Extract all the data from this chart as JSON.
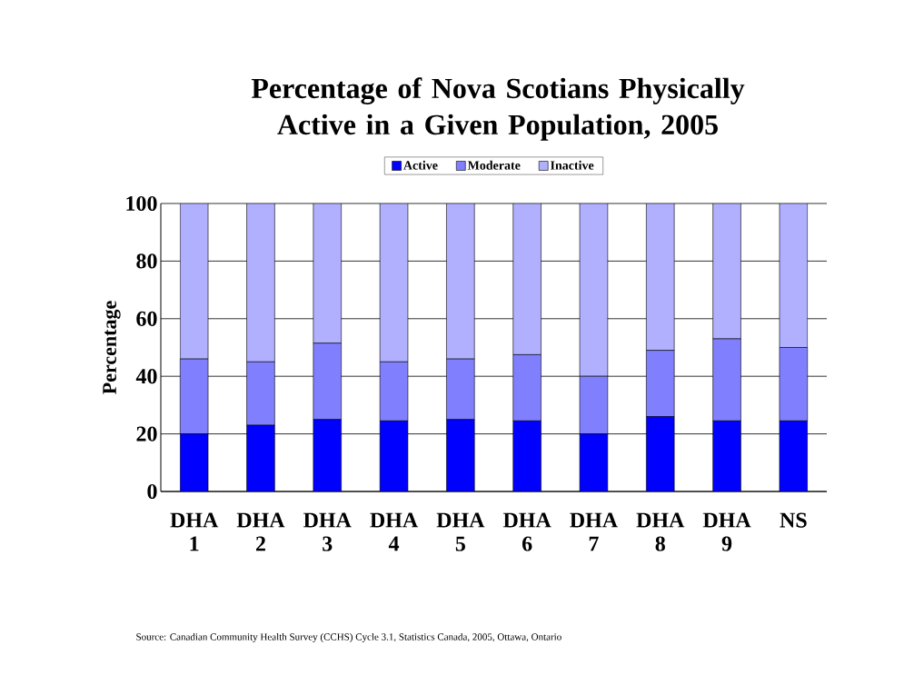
{
  "chart_data": {
    "type": "bar",
    "stacked": true,
    "title": "Percentage of Nova Scotians Physically Active in a Given Population, 2005",
    "ylabel": "Percentage",
    "categories": [
      "DHA 1",
      "DHA 2",
      "DHA 3",
      "DHA 4",
      "DHA 5",
      "DHA 6",
      "DHA 7",
      "DHA 8",
      "DHA 9",
      "NS"
    ],
    "series": [
      {
        "name": "Active",
        "color": "#0000ff",
        "values": [
          20,
          23,
          25,
          24.5,
          25,
          24.5,
          20,
          26,
          24.5,
          24.5
        ]
      },
      {
        "name": "Moderate",
        "color": "#8080ff",
        "values": [
          26,
          22,
          26.5,
          20.5,
          21,
          23,
          20,
          23,
          28.5,
          25.5
        ]
      },
      {
        "name": "Inactive",
        "color": "#b0b0ff",
        "values": [
          54,
          55,
          48.5,
          55,
          54,
          52.5,
          60,
          51,
          47,
          50
        ]
      }
    ],
    "ylim": [
      0,
      100
    ],
    "yticks": [
      0,
      20,
      40,
      60,
      80,
      100
    ],
    "grid": "y",
    "legend": "top",
    "annotations": [
      "Source: Canadian Community Health Survey (CCHS) Cycle 3.1, Statistics Canada, 2005, Ottawa, Ontario"
    ]
  }
}
